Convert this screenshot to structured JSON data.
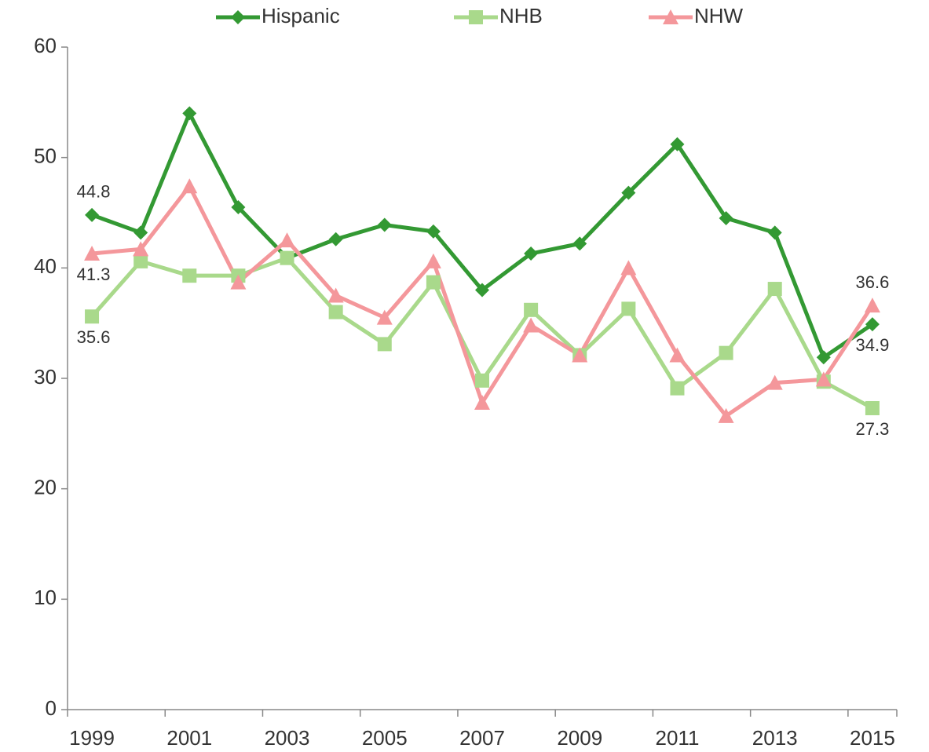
{
  "chart_data": {
    "type": "line",
    "categories": [
      "1999",
      null,
      "2001",
      null,
      "2003",
      null,
      "2005",
      null,
      "2007",
      null,
      "2009",
      null,
      "2011",
      null,
      "2013",
      null,
      "2015"
    ],
    "series": [
      {
        "name": "Hispanic",
        "color": "#339933",
        "marker": "diamond",
        "values": [
          44.8,
          43.2,
          54.0,
          45.5,
          40.9,
          42.6,
          43.9,
          43.3,
          38.0,
          41.3,
          42.2,
          46.8,
          51.2,
          44.5,
          43.2,
          31.9,
          34.9
        ],
        "value_labels": [
          "44.8",
          null,
          null,
          null,
          null,
          null,
          null,
          null,
          null,
          null,
          null,
          null,
          null,
          null,
          null,
          null,
          "34.9"
        ]
      },
      {
        "name": "NHB",
        "color": "#a9d98b",
        "marker": "square",
        "values": [
          35.6,
          40.6,
          39.3,
          39.3,
          40.9,
          36.0,
          33.1,
          38.7,
          29.8,
          36.2,
          32.1,
          36.3,
          29.1,
          32.3,
          38.1,
          29.7,
          27.3
        ],
        "value_labels": [
          "35.6",
          null,
          null,
          null,
          null,
          null,
          null,
          null,
          null,
          null,
          null,
          null,
          null,
          null,
          null,
          null,
          "27.3"
        ]
      },
      {
        "name": "NHW",
        "color": "#f4979b",
        "marker": "triangle",
        "values": [
          41.3,
          41.7,
          47.4,
          38.7,
          42.5,
          37.5,
          35.5,
          40.6,
          27.8,
          34.8,
          32.1,
          40.0,
          32.1,
          26.6,
          29.6,
          29.9,
          36.6
        ],
        "value_labels": [
          "41.3",
          null,
          null,
          null,
          null,
          null,
          null,
          null,
          null,
          null,
          null,
          null,
          null,
          null,
          null,
          null,
          "36.6"
        ]
      }
    ],
    "ylim": [
      0,
      60
    ],
    "yticks": [
      0,
      10,
      20,
      30,
      40,
      50,
      60
    ],
    "grid": false,
    "legend": "top"
  }
}
